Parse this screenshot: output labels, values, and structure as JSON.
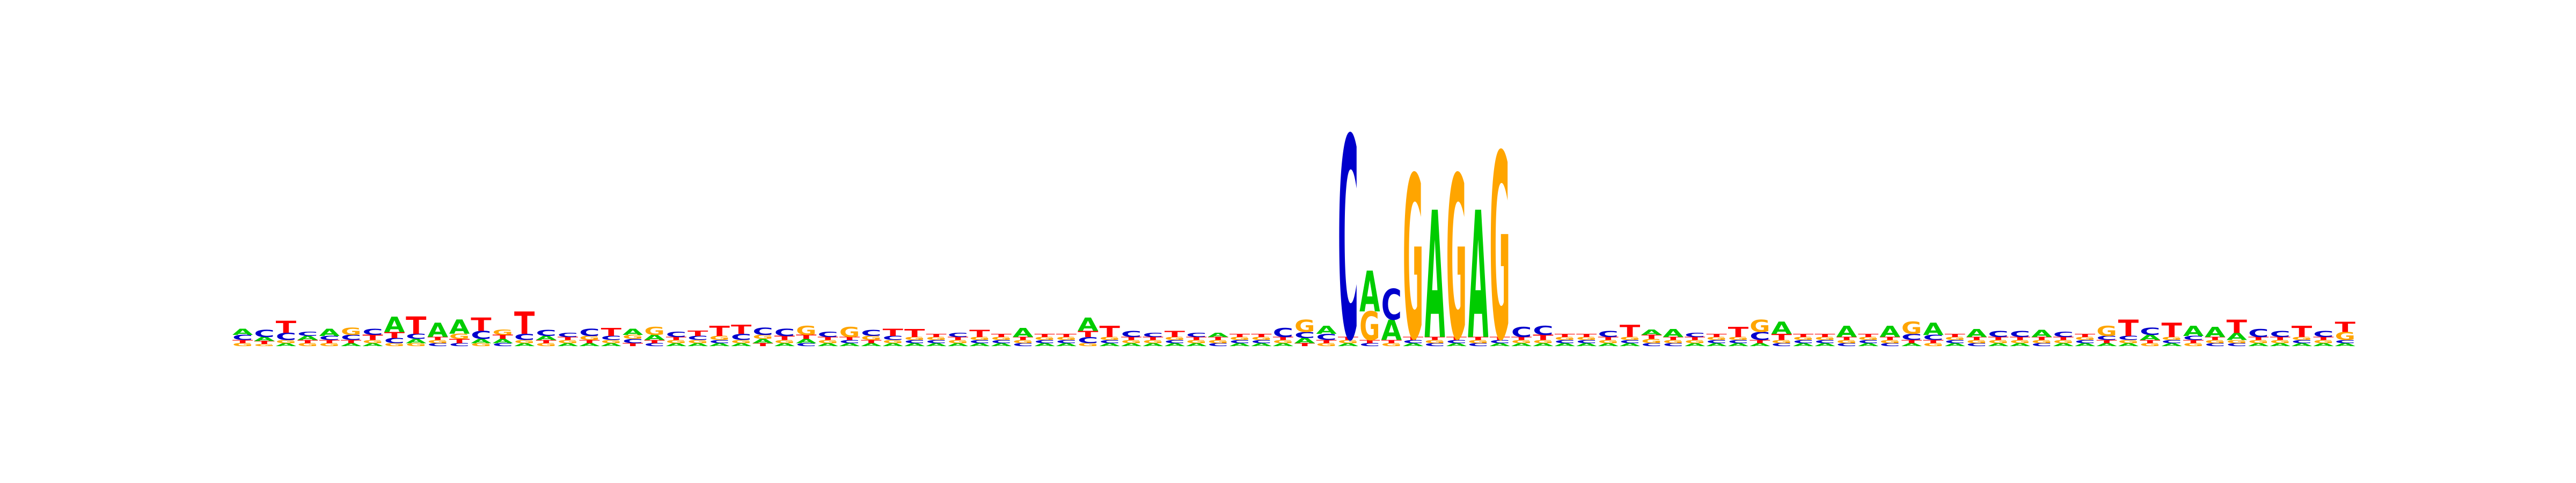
{
  "logo": {
    "type": "sequence-logo",
    "alphabet": [
      "A",
      "C",
      "G",
      "T"
    ],
    "colors": {
      "A": "#00cc00",
      "C": "#0000cc",
      "G": "#ffa500",
      "T": "#ff0000"
    },
    "max_bits": 2,
    "positions": [
      {
        "A": 0.06,
        "C": 0.05,
        "G": 0.03,
        "T": 0.03
      },
      {
        "A": 0.04,
        "C": 0.07,
        "G": 0.02,
        "T": 0.03
      },
      {
        "A": 0.03,
        "C": 0.07,
        "G": 0.03,
        "T": 0.12
      },
      {
        "A": 0.04,
        "C": 0.04,
        "G": 0.03,
        "T": 0.03
      },
      {
        "A": 0.07,
        "C": 0.04,
        "G": 0.03,
        "T": 0.03
      },
      {
        "A": 0.03,
        "C": 0.05,
        "G": 0.07,
        "T": 0.03
      },
      {
        "A": 0.03,
        "C": 0.06,
        "G": 0.03,
        "T": 0.05
      },
      {
        "A": 0.15,
        "C": 0.05,
        "G": 0.03,
        "T": 0.06
      },
      {
        "A": 0.04,
        "C": 0.05,
        "G": 0.03,
        "T": 0.17
      },
      {
        "A": 0.14,
        "C": 0.03,
        "G": 0.03,
        "T": 0.03
      },
      {
        "A": 0.14,
        "C": 0.03,
        "G": 0.05,
        "T": 0.04
      },
      {
        "A": 0.04,
        "C": 0.08,
        "G": 0.03,
        "T": 0.13
      },
      {
        "A": 0.04,
        "C": 0.03,
        "G": 0.05,
        "T": 0.04
      },
      {
        "A": 0.03,
        "C": 0.06,
        "G": 0.03,
        "T": 0.22
      },
      {
        "A": 0.04,
        "C": 0.06,
        "G": 0.03,
        "T": 0.03
      },
      {
        "A": 0.03,
        "C": 0.04,
        "G": 0.03,
        "T": 0.03
      },
      {
        "A": 0.03,
        "C": 0.07,
        "G": 0.04,
        "T": 0.03
      },
      {
        "A": 0.03,
        "C": 0.04,
        "G": 0.03,
        "T": 0.08
      },
      {
        "A": 0.06,
        "C": 0.04,
        "G": 0.04,
        "T": 0.03
      },
      {
        "A": 0.05,
        "C": 0.03,
        "G": 0.08,
        "T": 0.03
      },
      {
        "A": 0.03,
        "C": 0.05,
        "G": 0.03,
        "T": 0.03
      },
      {
        "A": 0.03,
        "C": 0.04,
        "G": 0.03,
        "T": 0.05
      },
      {
        "A": 0.03,
        "C": 0.03,
        "G": 0.04,
        "T": 0.1
      },
      {
        "A": 0.03,
        "C": 0.06,
        "G": 0.03,
        "T": 0.09
      },
      {
        "A": 0.04,
        "C": 0.07,
        "G": 0.04,
        "T": 0.03
      },
      {
        "A": 0.03,
        "C": 0.07,
        "G": 0.03,
        "T": 0.04
      },
      {
        "A": 0.04,
        "C": 0.03,
        "G": 0.09,
        "T": 0.04
      },
      {
        "A": 0.03,
        "C": 0.05,
        "G": 0.03,
        "T": 0.03
      },
      {
        "A": 0.03,
        "C": 0.03,
        "G": 0.1,
        "T": 0.03
      },
      {
        "A": 0.03,
        "C": 0.06,
        "G": 0.04,
        "T": 0.03
      },
      {
        "A": 0.03,
        "C": 0.04,
        "G": 0.03,
        "T": 0.07
      },
      {
        "A": 0.03,
        "C": 0.03,
        "G": 0.03,
        "T": 0.08
      },
      {
        "A": 0.03,
        "C": 0.03,
        "G": 0.03,
        "T": 0.03
      },
      {
        "A": 0.03,
        "C": 0.04,
        "G": 0.03,
        "T": 0.03
      },
      {
        "A": 0.03,
        "C": 0.03,
        "G": 0.03,
        "T": 0.07
      },
      {
        "A": 0.03,
        "C": 0.03,
        "G": 0.03,
        "T": 0.03
      },
      {
        "A": 0.09,
        "C": 0.03,
        "G": 0.03,
        "T": 0.03
      },
      {
        "A": 0.03,
        "C": 0.03,
        "G": 0.03,
        "T": 0.03
      },
      {
        "A": 0.03,
        "C": 0.03,
        "G": 0.03,
        "T": 0.03
      },
      {
        "A": 0.13,
        "C": 0.06,
        "G": 0.03,
        "T": 0.06
      },
      {
        "A": 0.03,
        "C": 0.03,
        "G": 0.03,
        "T": 0.11
      },
      {
        "A": 0.03,
        "C": 0.06,
        "G": 0.03,
        "T": 0.03
      },
      {
        "A": 0.03,
        "C": 0.04,
        "G": 0.03,
        "T": 0.03
      },
      {
        "A": 0.03,
        "C": 0.03,
        "G": 0.03,
        "T": 0.06
      },
      {
        "A": 0.03,
        "C": 0.04,
        "G": 0.03,
        "T": 0.03
      },
      {
        "A": 0.04,
        "C": 0.03,
        "G": 0.03,
        "T": 0.03
      },
      {
        "A": 0.03,
        "C": 0.03,
        "G": 0.03,
        "T": 0.03
      },
      {
        "A": 0.03,
        "C": 0.03,
        "G": 0.03,
        "T": 0.03
      },
      {
        "A": 0.03,
        "C": 0.09,
        "G": 0.03,
        "T": 0.03
      },
      {
        "A": 0.05,
        "C": 0.06,
        "G": 0.12,
        "T": 0.03
      },
      {
        "A": 0.08,
        "C": 0.06,
        "G": 0.03,
        "T": 0.03
      },
      {
        "A": 0.03,
        "C": 1.98,
        "G": 0.03,
        "T": 0.03
      },
      {
        "A": 0.4,
        "C": 0.03,
        "G": 0.28,
        "T": 0.03
      },
      {
        "A": 0.2,
        "C": 0.3,
        "G": 0.03,
        "T": 0.03
      },
      {
        "A": 0.03,
        "C": 0.03,
        "G": 1.6,
        "T": 0.03
      },
      {
        "A": 1.25,
        "C": 0.03,
        "G": 0.03,
        "T": 0.03
      },
      {
        "A": 0.03,
        "C": 0.03,
        "G": 1.6,
        "T": 0.03
      },
      {
        "A": 1.25,
        "C": 0.03,
        "G": 0.03,
        "T": 0.03
      },
      {
        "A": 0.03,
        "C": 0.03,
        "G": 1.82,
        "T": 0.03
      },
      {
        "A": 0.03,
        "C": 0.1,
        "G": 0.03,
        "T": 0.03
      },
      {
        "A": 0.03,
        "C": 0.09,
        "G": 0.03,
        "T": 0.05
      },
      {
        "A": 0.03,
        "C": 0.03,
        "G": 0.03,
        "T": 0.03
      },
      {
        "A": 0.03,
        "C": 0.03,
        "G": 0.03,
        "T": 0.03
      },
      {
        "A": 0.03,
        "C": 0.06,
        "G": 0.03,
        "T": 0.03
      },
      {
        "A": 0.03,
        "C": 0.03,
        "G": 0.03,
        "T": 0.12
      },
      {
        "A": 0.05,
        "C": 0.03,
        "G": 0.04,
        "T": 0.04
      },
      {
        "A": 0.08,
        "C": 0.03,
        "G": 0.03,
        "T": 0.03
      },
      {
        "A": 0.03,
        "C": 0.04,
        "G": 0.03,
        "T": 0.03
      },
      {
        "A": 0.03,
        "C": 0.03,
        "G": 0.03,
        "T": 0.03
      },
      {
        "A": 0.03,
        "C": 0.03,
        "G": 0.03,
        "T": 0.1
      },
      {
        "A": 0.03,
        "C": 0.08,
        "G": 0.12,
        "T": 0.03
      },
      {
        "A": 0.12,
        "C": 0.03,
        "G": 0.03,
        "T": 0.06
      },
      {
        "A": 0.03,
        "C": 0.03,
        "G": 0.03,
        "T": 0.03
      },
      {
        "A": 0.03,
        "C": 0.03,
        "G": 0.03,
        "T": 0.03
      },
      {
        "A": 0.11,
        "C": 0.03,
        "G": 0.03,
        "T": 0.03
      },
      {
        "A": 0.03,
        "C": 0.03,
        "G": 0.03,
        "T": 0.03
      },
      {
        "A": 0.11,
        "C": 0.03,
        "G": 0.03,
        "T": 0.03
      },
      {
        "A": 0.03,
        "C": 0.06,
        "G": 0.12,
        "T": 0.03
      },
      {
        "A": 0.12,
        "C": 0.05,
        "G": 0.03,
        "T": 0.03
      },
      {
        "A": 0.03,
        "C": 0.03,
        "G": 0.03,
        "T": 0.03
      },
      {
        "A": 0.08,
        "C": 0.03,
        "G": 0.03,
        "T": 0.03
      },
      {
        "A": 0.03,
        "C": 0.06,
        "G": 0.03,
        "T": 0.03
      },
      {
        "A": 0.03,
        "C": 0.06,
        "G": 0.03,
        "T": 0.03
      },
      {
        "A": 0.07,
        "C": 0.03,
        "G": 0.03,
        "T": 0.03
      },
      {
        "A": 0.03,
        "C": 0.05,
        "G": 0.03,
        "T": 0.03
      },
      {
        "A": 0.03,
        "C": 0.03,
        "G": 0.03,
        "T": 0.03
      },
      {
        "A": 0.03,
        "C": 0.04,
        "G": 0.1,
        "T": 0.03
      },
      {
        "A": 0.03,
        "C": 0.04,
        "G": 0.03,
        "T": 0.16
      },
      {
        "A": 0.05,
        "C": 0.07,
        "G": 0.03,
        "T": 0.03
      },
      {
        "A": 0.03,
        "C": 0.03,
        "G": 0.03,
        "T": 0.14
      },
      {
        "A": 0.1,
        "C": 0.04,
        "G": 0.03,
        "T": 0.03
      },
      {
        "A": 0.1,
        "C": 0.03,
        "G": 0.03,
        "T": 0.03
      },
      {
        "A": 0.07,
        "C": 0.03,
        "G": 0.03,
        "T": 0.13
      },
      {
        "A": 0.03,
        "C": 0.08,
        "G": 0.03,
        "T": 0.03
      },
      {
        "A": 0.03,
        "C": 0.06,
        "G": 0.03,
        "T": 0.03
      },
      {
        "A": 0.03,
        "C": 0.03,
        "G": 0.03,
        "T": 0.11
      },
      {
        "A": 0.03,
        "C": 0.06,
        "G": 0.03,
        "T": 0.03
      },
      {
        "A": 0.03,
        "C": 0.03,
        "G": 0.08,
        "T": 0.1
      }
    ]
  }
}
